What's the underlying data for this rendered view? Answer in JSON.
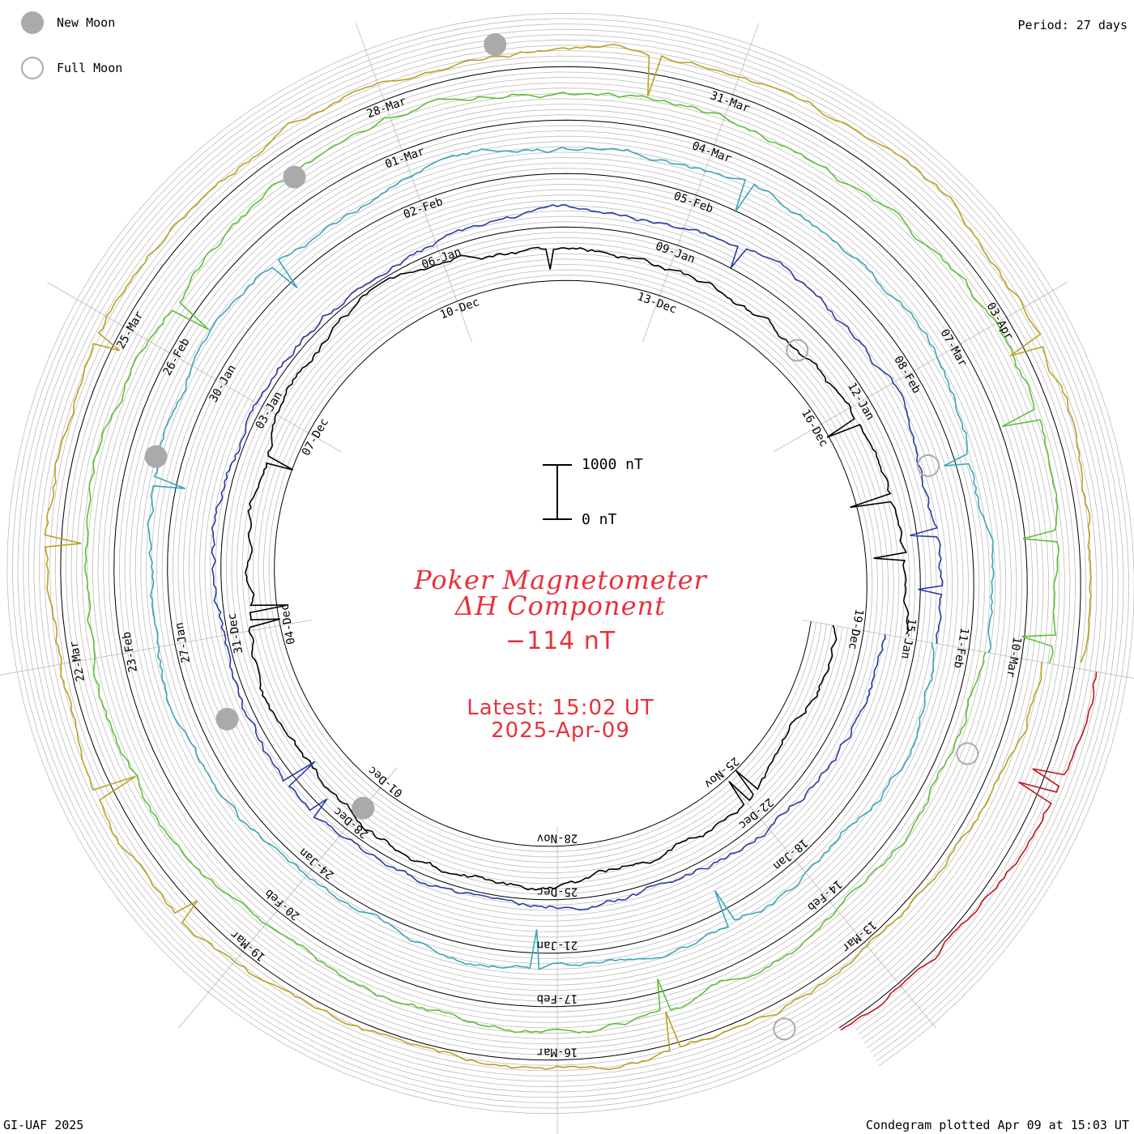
{
  "legend": {
    "new_moon_label": "New Moon",
    "full_moon_label": "Full Moon",
    "new_moon_color": "#aaaaaa",
    "full_moon_color": "#aaaaaa"
  },
  "period_label": "Period: 27 days",
  "footer_left": "GI-UAF 2025",
  "footer_right": "Condegram plotted Apr 09 at 15:03 UT",
  "title_line1": "Poker Magnetometer",
  "title_line2": "ΔH Component",
  "current_value": "−114 nT",
  "latest_line": "Latest: 15:02 UT",
  "latest_date": "2025-Apr-09",
  "scale_bar": {
    "top_label": "1000 nT",
    "bottom_label": "0 nT"
  },
  "colors": {
    "title": "#e8313c",
    "grid": "#bbbbbb",
    "baseline": "#000000"
  },
  "chart_data": {
    "type": "line",
    "period_days": 27,
    "scale_nT": [
      0,
      1000
    ],
    "series": [
      {
        "color": "#000000",
        "start": "2024-11-22",
        "date_labels": [
          "25-Nov",
          "28-Nov",
          "01-Dec",
          "04-Dec",
          "07-Dec",
          "10-Dec",
          "13-Dec",
          "16-Dec",
          "19-Dec"
        ]
      },
      {
        "color": "#2b3aa6",
        "start": "2024-12-19",
        "date_labels": [
          "22-Dec",
          "25-Dec",
          "28-Dec",
          "31-Dec",
          "03-Jan",
          "06-Jan",
          "09-Jan",
          "12-Jan",
          "15-Jan"
        ]
      },
      {
        "color": "#3aa6b8",
        "start": "2025-01-15",
        "date_labels": [
          "18-Jan",
          "21-Jan",
          "24-Jan",
          "27-Jan",
          "30-Jan",
          "02-Feb",
          "05-Feb",
          "08-Feb",
          "11-Feb"
        ]
      },
      {
        "color": "#5fbf3a",
        "start": "2025-02-11",
        "date_labels": [
          "14-Feb",
          "17-Feb",
          "20-Feb",
          "23-Feb",
          "26-Feb",
          "01-Mar",
          "04-Mar",
          "07-Mar",
          "10-Mar"
        ]
      },
      {
        "color": "#b8a31e",
        "start": "2025-03-10",
        "date_labels": [
          "13-Mar",
          "16-Mar",
          "19-Mar",
          "22-Mar",
          "25-Mar",
          "28-Mar",
          "31-Mar",
          "03-Apr"
        ]
      },
      {
        "color": "#c4141c",
        "start": "2025-04-06",
        "date_labels": []
      }
    ],
    "new_moon_dates": [
      "2024-12-01",
      "2024-12-30",
      "2025-01-29",
      "2025-02-28",
      "2025-03-29"
    ],
    "full_moon_dates": [
      "2024-12-15",
      "2025-01-13",
      "2025-02-12",
      "2025-03-14"
    ]
  }
}
